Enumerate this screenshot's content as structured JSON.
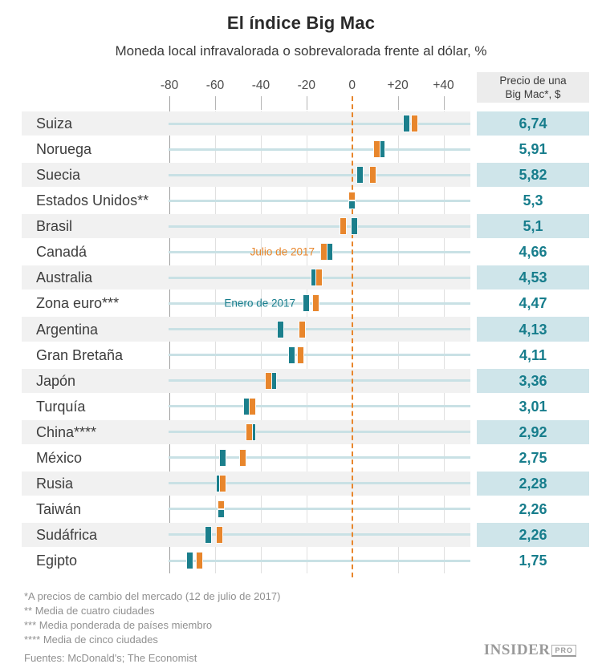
{
  "title": "El índice Big Mac",
  "subtitle": "Moneda local infravalorada o sobrevalorada frente al dólar, %",
  "price_column": {
    "header_line1": "Precio de una",
    "header_line2": "Big Mac*, $"
  },
  "annotations": {
    "julio_label": "Julio de 2017",
    "enero_label": "Enero de 2017"
  },
  "colors": {
    "julio_orange": "#e8862c",
    "enero_teal": "#1b7f8c",
    "price_text": "#177d8c",
    "price_highlight_bg": "#cfe5ea",
    "row_stripe_bg": "#f1f1f1",
    "baseline_blue": "#c9e1e5"
  },
  "chart_data": {
    "type": "scatter",
    "orientation": "horizontal",
    "title": "El índice Big Mac",
    "subtitle": "Moneda local infravalorada o sobrevalorada frente al dólar, %",
    "xlabel": "Moneda local infravalorada o sobrevalorada frente al dólar, %",
    "xlim": [
      -80,
      40
    ],
    "x_tick_labels": [
      "-80",
      "-60",
      "-40",
      "-20",
      "0",
      "+20",
      "+40"
    ],
    "x_tick_values": [
      -80,
      -60,
      -40,
      -20,
      0,
      20,
      40
    ],
    "grid": true,
    "zero_reference_line": true,
    "categories": [
      "Suiza",
      "Noruega",
      "Suecia",
      "Estados Unidos**",
      "Brasil",
      "Canadá",
      "Australia",
      "Zona euro***",
      "Argentina",
      "Gran Bretaña",
      "Japón",
      "Turquía",
      "China****",
      "México",
      "Rusia",
      "Taiwán",
      "Sudáfrica",
      "Egipto"
    ],
    "series": [
      {
        "name": "Enero de 2017",
        "color": "#1b7f8c",
        "values": [
          24,
          13,
          3.5,
          0,
          1,
          -10,
          -16.5,
          -20,
          -31.5,
          -26.5,
          -34.5,
          -46,
          -43.5,
          -56.5,
          -58,
          -57.5,
          -63,
          -71
        ]
      },
      {
        "name": "Julio de 2017",
        "color": "#e8862c",
        "values": [
          27.5,
          11,
          9,
          0,
          -4,
          -12.5,
          -14.5,
          -16,
          -22,
          -22.5,
          -36.5,
          -43.5,
          -45,
          -48,
          -56.5,
          -57.5,
          -58,
          -67
        ]
      }
    ],
    "price_column_header": "Precio de una Big Mac*, $",
    "prices_usd": [
      "6,74",
      "5,91",
      "5,82",
      "5,3",
      "5,1",
      "4,66",
      "4,53",
      "4,47",
      "4,13",
      "4,11",
      "3,36",
      "3,01",
      "2,92",
      "2,75",
      "2,28",
      "2,26",
      "2,26",
      "1,75"
    ]
  },
  "footnotes": [
    "*A precios de cambio del mercado (12 de julio de 2017)",
    "** Media de cuatro ciudades",
    "*** Media ponderada de países miembro",
    "**** Media de cinco ciudades"
  ],
  "source": "Fuentes: McDonald's; The Economist",
  "logo": {
    "name": "INSIDER",
    "suffix": "PRO"
  }
}
